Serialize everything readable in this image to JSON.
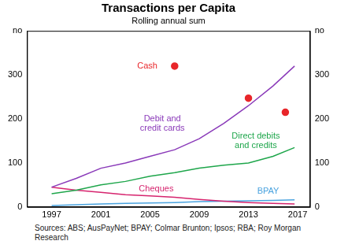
{
  "chart_data": {
    "type": "line",
    "title": "Transactions per Capita",
    "subtitle": "Rolling annual sum",
    "source": "Sources: ABS; AusPayNet; BPAY; Colmar Brunton; Ipsos; RBA; Roy Morgan Research",
    "xlim": [
      1995,
      2018
    ],
    "xticks": [
      1997,
      2001,
      2005,
      2009,
      2013,
      2017
    ],
    "ylim": [
      0,
      400
    ],
    "yticks": [
      0,
      100,
      200,
      300,
      {
        "value": 400,
        "label": "no"
      }
    ],
    "y2lim": [
      0,
      400
    ],
    "y2ticks": [
      0,
      100,
      200,
      300,
      {
        "value": 400,
        "label": "no"
      }
    ],
    "grid": false,
    "series": [
      {
        "name": "Debit and credit cards",
        "color": "#8a3ab9",
        "type": "line",
        "x": [
          1997,
          1999,
          2001,
          2003,
          2005,
          2007,
          2009,
          2011,
          2013,
          2015,
          2016.75
        ],
        "values": [
          45,
          65,
          88,
          100,
          115,
          130,
          155,
          190,
          230,
          275,
          320
        ]
      },
      {
        "name": "Direct debits and credits",
        "color": "#1ea64b",
        "type": "line",
        "x": [
          1997,
          1999,
          2001,
          2003,
          2005,
          2007,
          2009,
          2011,
          2013,
          2015,
          2016.75
        ],
        "values": [
          30,
          38,
          50,
          58,
          70,
          78,
          88,
          95,
          100,
          115,
          135
        ]
      },
      {
        "name": "Cheques",
        "color": "#d6246e",
        "type": "line",
        "x": [
          1997,
          1999,
          2001,
          2003,
          2005,
          2007,
          2009,
          2011,
          2013,
          2015,
          2016.75
        ],
        "values": [
          45,
          38,
          33,
          28,
          25,
          22,
          17,
          13,
          10,
          8,
          7
        ]
      },
      {
        "name": "BPAY",
        "color": "#4aa3df",
        "type": "line",
        "x": [
          1997,
          1999,
          2001,
          2003,
          2005,
          2007,
          2009,
          2011,
          2013,
          2015,
          2016.75
        ],
        "values": [
          3,
          5,
          7,
          8,
          9,
          10,
          12,
          13,
          14,
          15,
          16
        ]
      },
      {
        "name": "Cash",
        "color": "#e8262a",
        "type": "scatter",
        "marker": "circle",
        "x": [
          2007,
          2013,
          2016
        ],
        "values": [
          320,
          247,
          215
        ]
      }
    ]
  }
}
